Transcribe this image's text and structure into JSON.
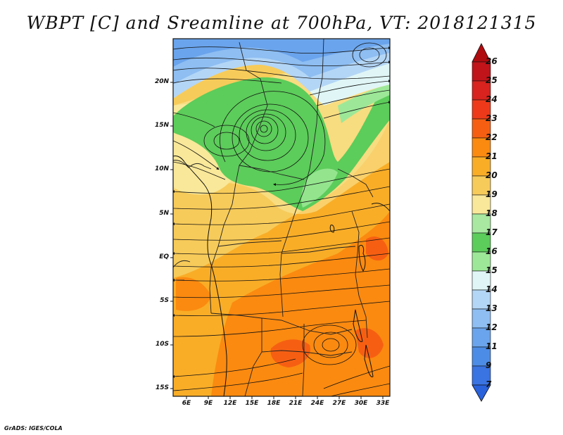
{
  "title": "WBPT [C] and Sreamline at 700hPa, VT: 2018121315",
  "footer": "GrADS: IGES/COLA",
  "map": {
    "lat_labels": [
      "20N",
      "15N",
      "10N",
      "5N",
      "EQ",
      "5S",
      "10S",
      "15S"
    ],
    "lon_labels": [
      "6E",
      "9E",
      "12E",
      "15E",
      "18E",
      "21E",
      "24E",
      "27E",
      "30E",
      "33E"
    ],
    "cyclone_center": "15N 17E"
  },
  "colorbar": {
    "labels": [
      "26",
      "25",
      "24",
      "23",
      "22",
      "21",
      "20",
      "19",
      "18",
      "17",
      "16",
      "15",
      "14",
      "13",
      "12",
      "11",
      "9",
      "7"
    ],
    "colors": [
      "#c0141a",
      "#d8231e",
      "#ee3a1a",
      "#f65f12",
      "#fb8a10",
      "#f9ad27",
      "#f7cb5a",
      "#f9e899",
      "#a8e8a0",
      "#5ccc5a",
      "#9de898",
      "#e0f6f6",
      "#b4d6f6",
      "#8ebef2",
      "#6aa4ec",
      "#4d8ce6",
      "#3a73e2"
    ]
  }
}
